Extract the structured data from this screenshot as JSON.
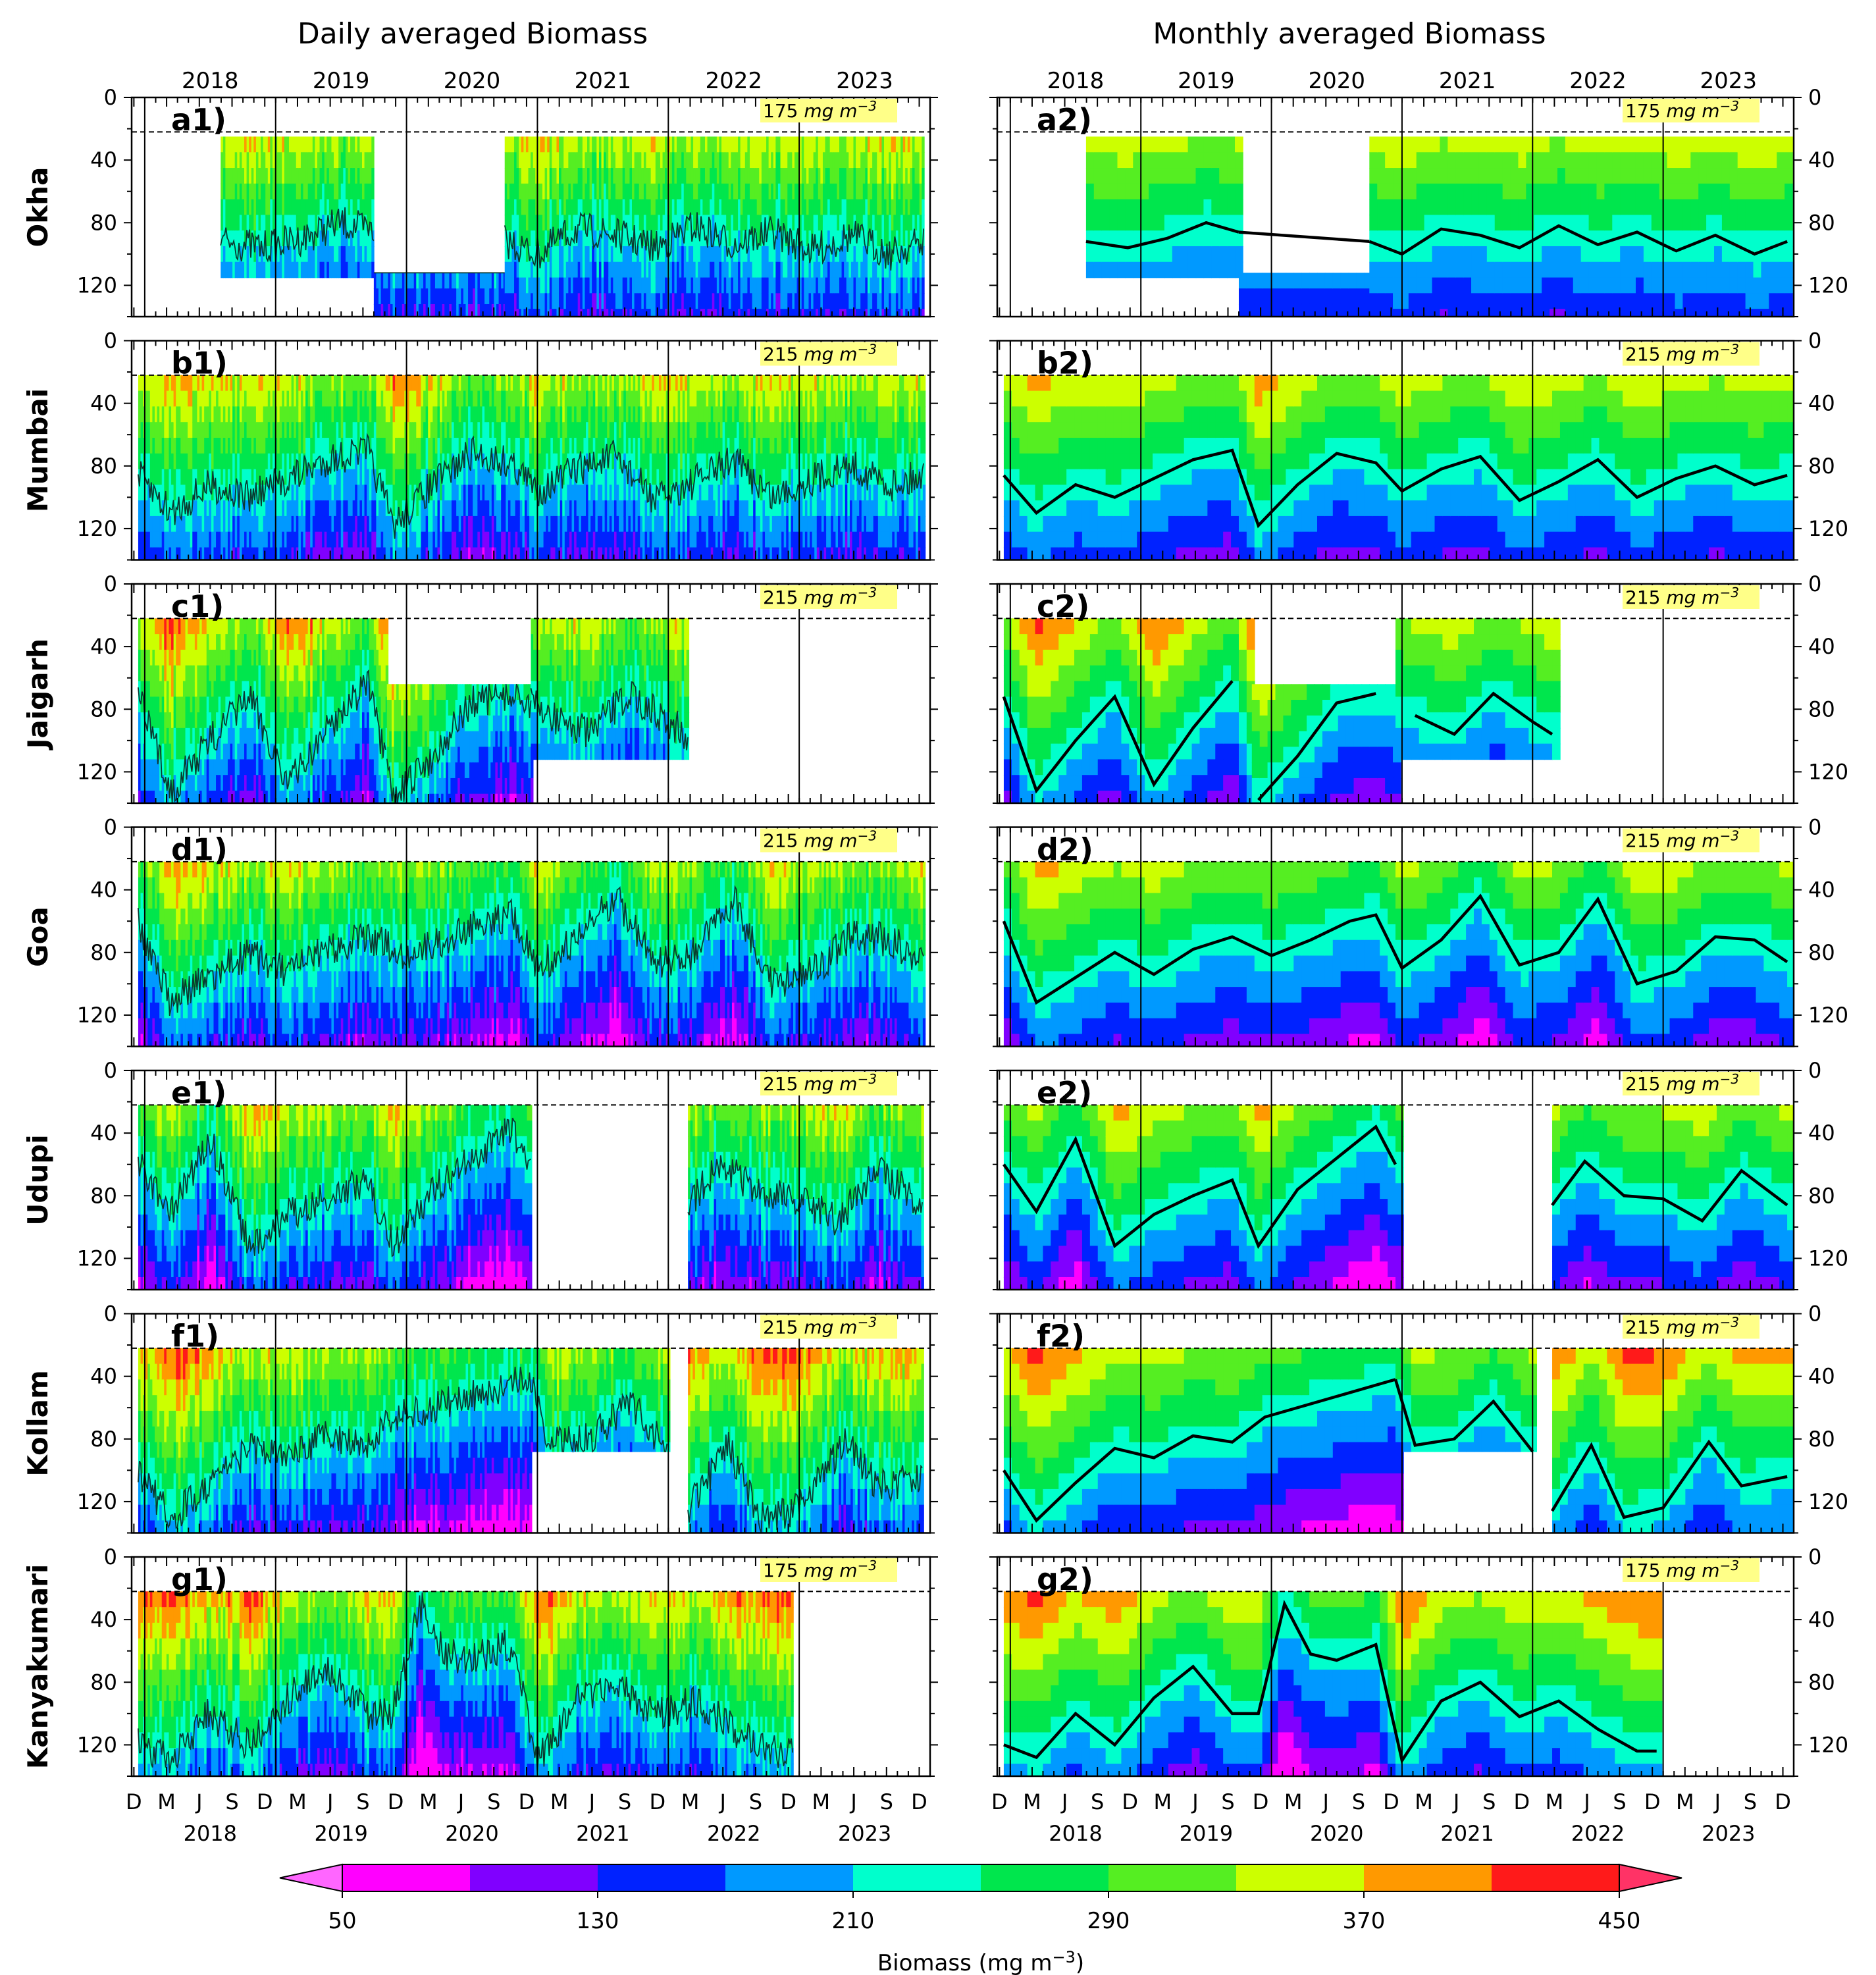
{
  "columns": [
    "Daily averaged Biomass",
    "Monthly averaged Biomass"
  ],
  "top_years": [
    "2018",
    "2019",
    "2020",
    "2021",
    "2022",
    "2023"
  ],
  "month_ticks": [
    "D",
    "M",
    "J",
    "S"
  ],
  "y_ticks": [
    "0",
    "40",
    "80",
    "120"
  ],
  "threshold_unit": "mg m",
  "threshold_exp": "−3",
  "colorbar": {
    "label": "Biomass (mg m",
    "label_exp": "−3",
    "label_close": ")",
    "tick_labels": [
      "50",
      "130",
      "210",
      "290",
      "370",
      "450"
    ],
    "colors": [
      "#ff00ff",
      "#8000ff",
      "#0022ff",
      "#0099ff",
      "#00ffcc",
      "#00e64d",
      "#55ee22",
      "#ccff00",
      "#ff9900",
      "#ff1a1a"
    ],
    "extend_low": "#ff66ff",
    "extend_high": "#ff3366"
  },
  "chart_data": {
    "type": "heatmap",
    "x_range": [
      "2017-12",
      "2023-12"
    ],
    "y_range": [
      0,
      140
    ],
    "y_inverted": true,
    "threshold_depth": 22,
    "rows": [
      {
        "station": "Okha",
        "threshold": "175",
        "daily_label": "a1)",
        "monthly_label": "a2)",
        "segments": [
          [
            2018.58,
            2019.75,
            25,
            115
          ],
          [
            2019.75,
            2020.75,
            112,
            140
          ],
          [
            2020.75,
            2023.95,
            25,
            140
          ]
        ],
        "isoline": [
          [
            2018.58,
            92
          ],
          [
            2018.9,
            96
          ],
          [
            2019.2,
            90
          ],
          [
            2019.5,
            80
          ],
          [
            2019.75,
            86
          ],
          [
            2020.75,
            92
          ],
          [
            2021.0,
            100
          ],
          [
            2021.3,
            84
          ],
          [
            2021.6,
            88
          ],
          [
            2021.9,
            96
          ],
          [
            2022.2,
            82
          ],
          [
            2022.5,
            94
          ],
          [
            2022.8,
            86
          ],
          [
            2023.1,
            98
          ],
          [
            2023.4,
            88
          ],
          [
            2023.7,
            100
          ],
          [
            2023.95,
            92
          ]
        ]
      },
      {
        "station": "Mumbai",
        "threshold": "215",
        "daily_label": "b1)",
        "monthly_label": "b2)",
        "segments": [
          [
            2017.95,
            2023.95,
            22,
            140
          ]
        ],
        "isoline": [
          [
            2017.95,
            86
          ],
          [
            2018.2,
            110
          ],
          [
            2018.5,
            92
          ],
          [
            2018.8,
            100
          ],
          [
            2019.1,
            88
          ],
          [
            2019.4,
            76
          ],
          [
            2019.7,
            70
          ],
          [
            2019.9,
            118
          ],
          [
            2020.2,
            92
          ],
          [
            2020.5,
            72
          ],
          [
            2020.8,
            78
          ],
          [
            2021.0,
            96
          ],
          [
            2021.3,
            82
          ],
          [
            2021.6,
            74
          ],
          [
            2021.9,
            102
          ],
          [
            2022.2,
            90
          ],
          [
            2022.5,
            76
          ],
          [
            2022.8,
            100
          ],
          [
            2023.1,
            88
          ],
          [
            2023.4,
            80
          ],
          [
            2023.7,
            92
          ],
          [
            2023.95,
            86
          ]
        ]
      },
      {
        "station": "Jaigarh",
        "threshold": "215",
        "daily_label": "c1)",
        "monthly_label": "c2)",
        "segments": [
          [
            2017.95,
            2019.85,
            22,
            140
          ],
          [
            2019.85,
            2020.95,
            64,
            140
          ],
          [
            2020.95,
            2022.15,
            22,
            112
          ]
        ],
        "isoline": [
          [
            2017.95,
            72
          ],
          [
            2018.2,
            132
          ],
          [
            2018.5,
            100
          ],
          [
            2018.8,
            72
          ],
          [
            2019.1,
            128
          ],
          [
            2019.4,
            92
          ],
          [
            2019.7,
            62
          ],
          [
            2019.9,
            138
          ],
          [
            2020.2,
            110
          ],
          [
            2020.5,
            76
          ],
          [
            2020.8,
            70
          ],
          [
            2021.1,
            84
          ],
          [
            2021.4,
            96
          ],
          [
            2021.7,
            70
          ],
          [
            2022.0,
            88
          ],
          [
            2022.15,
            96
          ]
        ]
      },
      {
        "station": "Goa",
        "threshold": "215",
        "daily_label": "d1)",
        "monthly_label": "d2)",
        "segments": [
          [
            2017.95,
            2023.95,
            22,
            140
          ]
        ],
        "isoline": [
          [
            2017.95,
            60
          ],
          [
            2018.2,
            112
          ],
          [
            2018.5,
            96
          ],
          [
            2018.8,
            80
          ],
          [
            2019.1,
            94
          ],
          [
            2019.4,
            78
          ],
          [
            2019.7,
            70
          ],
          [
            2020.0,
            82
          ],
          [
            2020.3,
            72
          ],
          [
            2020.6,
            60
          ],
          [
            2020.8,
            56
          ],
          [
            2021.0,
            90
          ],
          [
            2021.3,
            72
          ],
          [
            2021.6,
            44
          ],
          [
            2021.9,
            88
          ],
          [
            2022.2,
            80
          ],
          [
            2022.5,
            46
          ],
          [
            2022.8,
            100
          ],
          [
            2023.1,
            92
          ],
          [
            2023.4,
            70
          ],
          [
            2023.7,
            72
          ],
          [
            2023.95,
            86
          ]
        ]
      },
      {
        "station": "Udupi",
        "threshold": "215",
        "daily_label": "e1)",
        "monthly_label": "e2)",
        "segments": [
          [
            2017.95,
            2020.95,
            22,
            140
          ],
          [
            2022.15,
            2023.95,
            22,
            140
          ]
        ],
        "isoline": [
          [
            2017.95,
            60
          ],
          [
            2018.2,
            90
          ],
          [
            2018.5,
            44
          ],
          [
            2018.8,
            112
          ],
          [
            2019.1,
            92
          ],
          [
            2019.4,
            80
          ],
          [
            2019.7,
            70
          ],
          [
            2019.9,
            112
          ],
          [
            2020.2,
            76
          ],
          [
            2020.5,
            56
          ],
          [
            2020.8,
            36
          ],
          [
            2020.95,
            60
          ],
          [
            2022.15,
            86
          ],
          [
            2022.4,
            58
          ],
          [
            2022.7,
            80
          ],
          [
            2023.0,
            82
          ],
          [
            2023.3,
            96
          ],
          [
            2023.6,
            64
          ],
          [
            2023.95,
            86
          ]
        ]
      },
      {
        "station": "Kollam",
        "threshold": "215",
        "daily_label": "f1)",
        "monthly_label": "f2)",
        "segments": [
          [
            2017.95,
            2020.95,
            22,
            140
          ],
          [
            2020.95,
            2022.0,
            22,
            88
          ],
          [
            2022.15,
            2023.95,
            22,
            140
          ]
        ],
        "isoline": [
          [
            2017.95,
            100
          ],
          [
            2018.2,
            132
          ],
          [
            2018.5,
            108
          ],
          [
            2018.8,
            86
          ],
          [
            2019.1,
            92
          ],
          [
            2019.4,
            78
          ],
          [
            2019.7,
            82
          ],
          [
            2019.95,
            66
          ],
          [
            2020.95,
            42
          ],
          [
            2021.1,
            84
          ],
          [
            2021.4,
            80
          ],
          [
            2021.7,
            56
          ],
          [
            2022.0,
            88
          ],
          [
            2022.15,
            126
          ],
          [
            2022.45,
            84
          ],
          [
            2022.7,
            130
          ],
          [
            2023.0,
            124
          ],
          [
            2023.35,
            82
          ],
          [
            2023.6,
            110
          ],
          [
            2023.95,
            104
          ]
        ]
      },
      {
        "station": "Kanyakumari",
        "threshold": "175",
        "daily_label": "g1)",
        "monthly_label": "g2)",
        "segments": [
          [
            2017.95,
            2022.95,
            22,
            140
          ]
        ],
        "isoline": [
          [
            2017.95,
            120
          ],
          [
            2018.2,
            128
          ],
          [
            2018.5,
            100
          ],
          [
            2018.8,
            120
          ],
          [
            2019.1,
            90
          ],
          [
            2019.4,
            70
          ],
          [
            2019.7,
            100
          ],
          [
            2019.9,
            100
          ],
          [
            2020.1,
            30
          ],
          [
            2020.3,
            62
          ],
          [
            2020.5,
            66
          ],
          [
            2020.8,
            56
          ],
          [
            2021.0,
            130
          ],
          [
            2021.3,
            92
          ],
          [
            2021.6,
            80
          ],
          [
            2021.9,
            102
          ],
          [
            2022.2,
            92
          ],
          [
            2022.5,
            110
          ],
          [
            2022.8,
            124
          ],
          [
            2022.95,
            124
          ]
        ]
      }
    ]
  }
}
